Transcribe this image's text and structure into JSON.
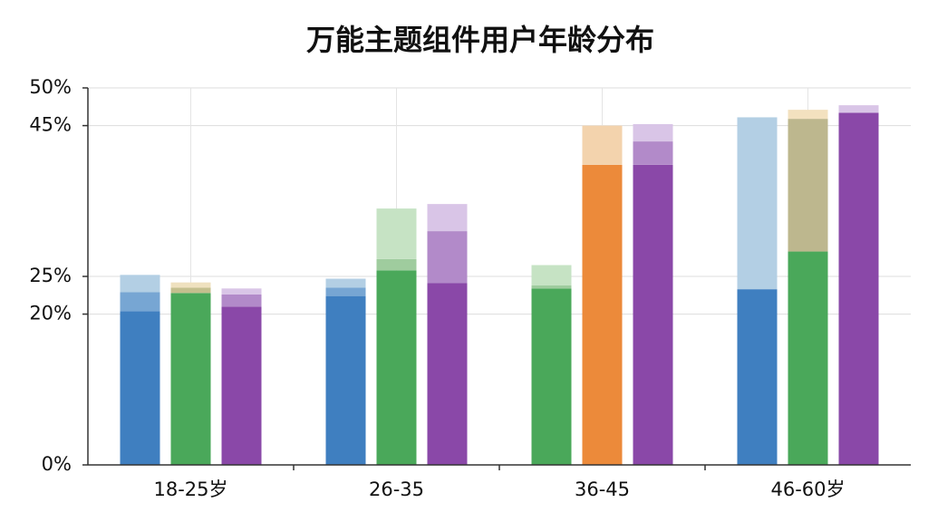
{
  "chart_data": {
    "type": "stacked-bar-groups",
    "title": "万能主题组件用户年龄分布",
    "categories": [
      "18-25岁",
      "26-35",
      "36-45",
      "46-60岁"
    ],
    "ylim": [
      0,
      50
    ],
    "yticks": [
      {
        "value": 0,
        "label": "0%"
      },
      {
        "value": 20,
        "label": "20%"
      },
      {
        "value": 25,
        "label": "25%"
      },
      {
        "value": 45,
        "label": "45%"
      },
      {
        "value": 50,
        "label": "50%"
      }
    ],
    "grid": true,
    "bars": [
      {
        "segments": [
          {
            "values": [
              20.4,
              22.4,
              23.4,
              23.3
            ],
            "colors": [
              "#3f7fc0",
              "#3f7fc0",
              "#4aa85a",
              "#3f7fc0"
            ]
          },
          {
            "values": [
              2.5,
              1.1,
              0.4,
              null
            ],
            "colors": [
              "#77a6d3",
              "#77a6d3",
              "#9fcc9e",
              "#b3cfe4"
            ]
          },
          {
            "values": [
              2.3,
              1.2,
              2.7,
              22.8
            ],
            "colors": [
              "#b3cfe4",
              "#b3cfe4",
              "#c6e3c4",
              "#b3cfe4"
            ]
          }
        ]
      },
      {
        "segments": [
          {
            "values": [
              22.8,
              25.8,
              39.8,
              28.3
            ],
            "colors": [
              "#4aa85a",
              "#4aa85a",
              "#ec8a3a",
              "#4aa85a"
            ]
          },
          {
            "values": [
              0.7,
              1.5,
              null,
              17.6
            ],
            "colors": [
              "#c4bf8e",
              "#9fcc9e",
              "#f3d3ad",
              "#bdb78e"
            ]
          },
          {
            "values": [
              0.7,
              6.7,
              5.2,
              1.2
            ],
            "colors": [
              "#efe1bf",
              "#c6e3c4",
              "#f3d3ad",
              "#f3e1bf"
            ]
          }
        ]
      },
      {
        "segments": [
          {
            "values": [
              21.0,
              24.1,
              39.8,
              46.7
            ],
            "colors": [
              "#8a48a8",
              "#8a48a8",
              "#8a48a8",
              "#8a48a8"
            ]
          },
          {
            "values": [
              1.6,
              6.9,
              3.1,
              null
            ],
            "colors": [
              "#b28ac9",
              "#b28ac9",
              "#b28ac9",
              "#d9c5e7"
            ]
          },
          {
            "values": [
              0.8,
              3.6,
              2.3,
              1.0
            ],
            "colors": [
              "#d9c5e7",
              "#d9c5e7",
              "#d9c5e7",
              "#d9c5e7"
            ]
          }
        ]
      }
    ]
  }
}
